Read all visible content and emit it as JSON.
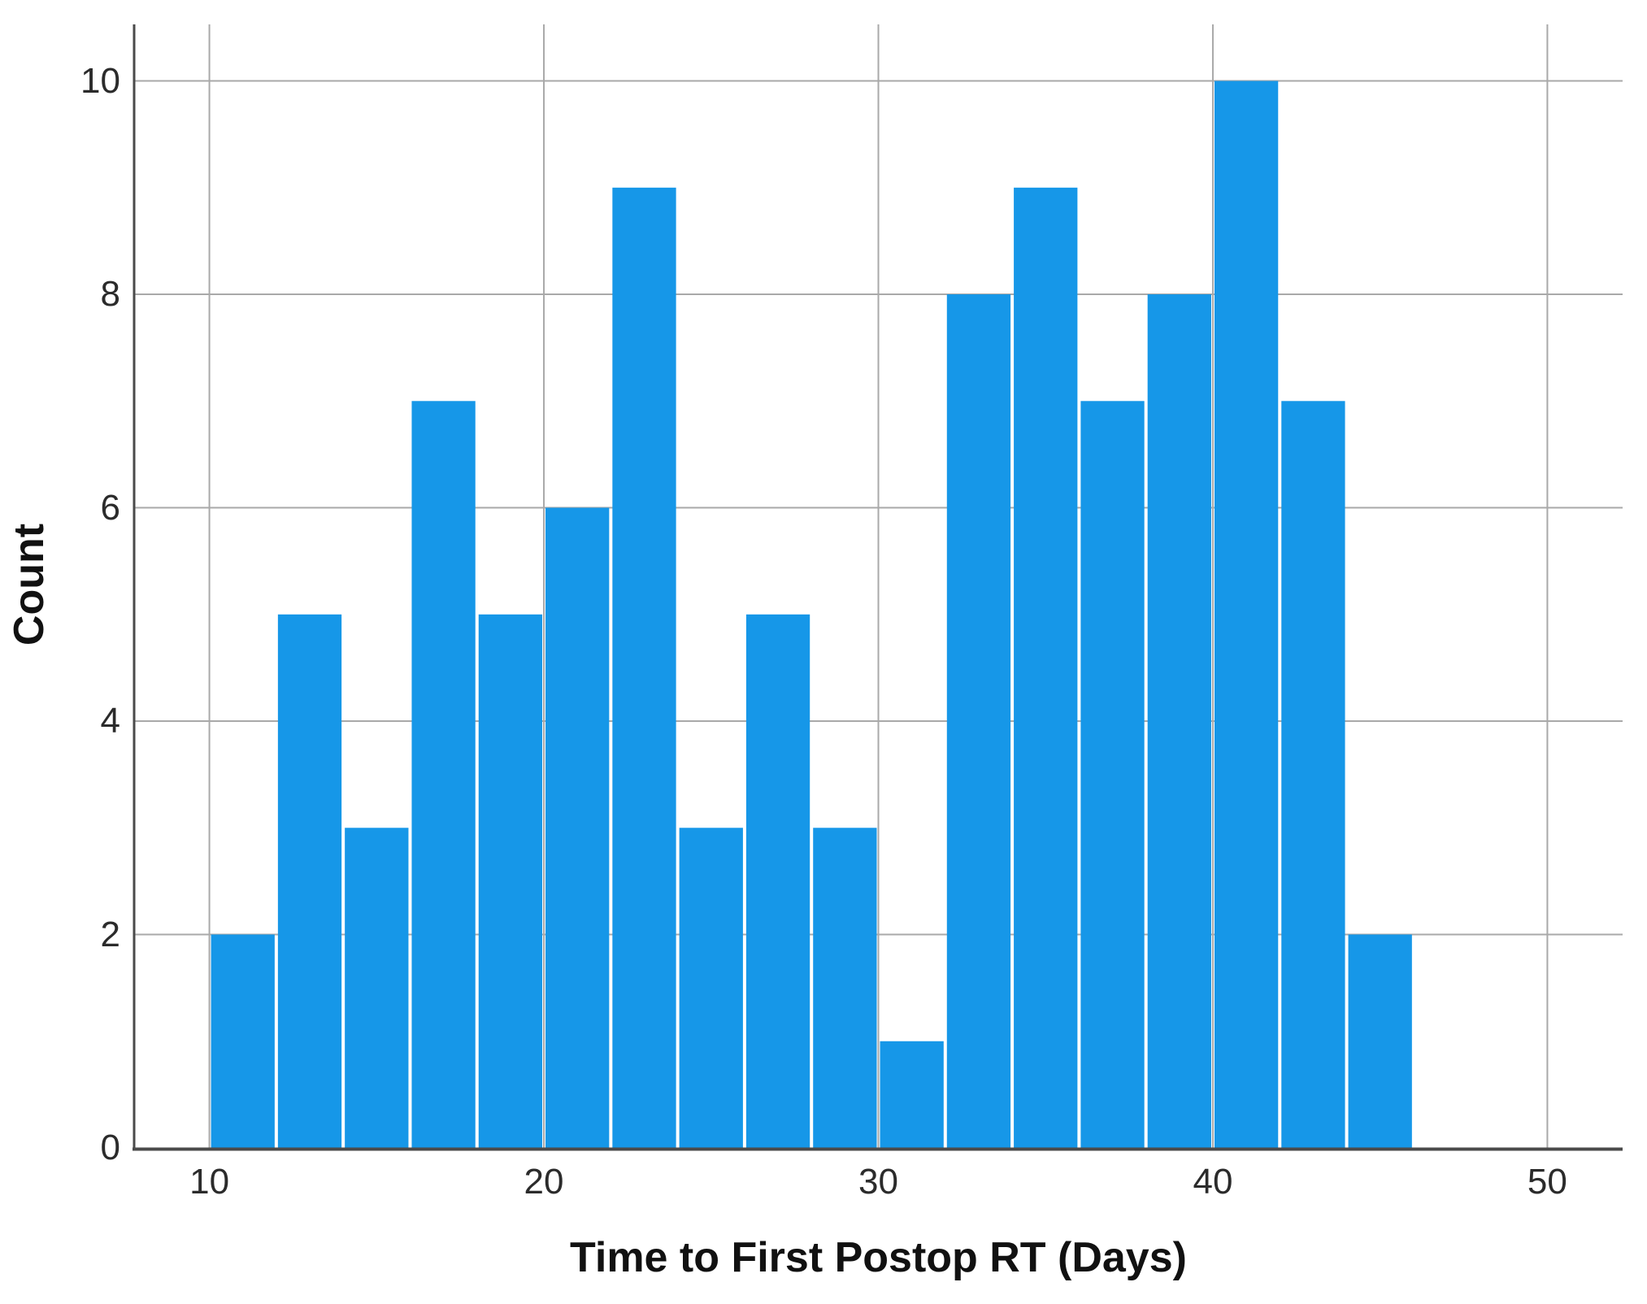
{
  "figure": {
    "background": "#ffffff"
  },
  "chart_data": {
    "type": "bar",
    "subtype": "histogram",
    "title": "",
    "xlabel": "Time to First Postop RT (Days)",
    "ylabel": "Count",
    "bin_start": 10,
    "bin_width": 2,
    "categories": [
      10,
      12,
      14,
      16,
      18,
      20,
      22,
      24,
      26,
      28,
      30,
      32,
      34,
      36,
      38,
      40,
      42,
      44
    ],
    "values": [
      2,
      5,
      3,
      7,
      5,
      6,
      9,
      3,
      5,
      3,
      1,
      8,
      9,
      7,
      8,
      10,
      7,
      2
    ],
    "x_ticks": [
      10,
      20,
      30,
      40,
      50
    ],
    "y_ticks": [
      0,
      2,
      4,
      6,
      8,
      10
    ],
    "xlim": [
      7.75,
      52.25
    ],
    "ylim": [
      0,
      10.53
    ],
    "grid": true,
    "legend": false,
    "colors": {
      "bar": "#1697e8",
      "grid": "#a9a9a9",
      "axis": "#4a4a4a",
      "tick_text": "#2b2b2b",
      "title_text": "#111111"
    }
  }
}
